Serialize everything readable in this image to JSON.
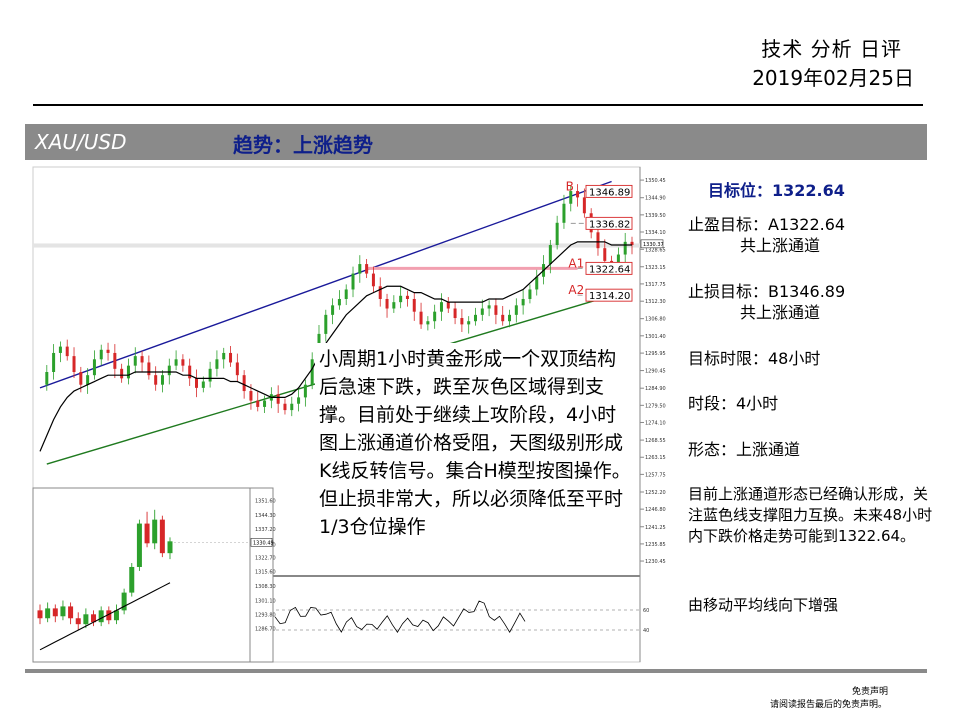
{
  "header": {
    "title": "技术 分析 日评",
    "date": "2019年02月25日"
  },
  "band": {
    "symbol": "XAU/USD",
    "trend": "趋势：上涨趋势"
  },
  "side": {
    "target_label": "目标位：1322.64",
    "tp_line1": "止盈目标：A1322.64",
    "tp_line2": "共上涨通道",
    "sl_line1": "止损目标：B1346.89",
    "sl_line2": "共上涨通道",
    "time_limit": "目标时限：48小时",
    "period": "时段：4小时",
    "pattern": "形态：上涨通道",
    "description": "目前上涨通道形态已经确认形成，关注蓝色线支撑阻力互换。未来48小时内下跌价格走势可能到1322.64。",
    "ma_note": "由移动平均线向下增强"
  },
  "chart_text": "小周期1小时黄金形成一个双顶结构后急速下跌，跌至灰色区域得到支撑。目前处于继续上攻阶段，4小时图上涨通道价格受阻，天图级别形成K线反转信号。集合H模型按图操作。但止损非常大，所以必须降低至平时1/3仓位操作",
  "disclaimer": {
    "line1": "免责声明",
    "line2": "请阅读报告最后的免责声明。"
  },
  "colors": {
    "up": "#2ca02c",
    "down": "#d62728",
    "channel_top": "#1a1a9a",
    "channel_bottom": "#1f7a1f",
    "level": "#d62728",
    "band": "#8a8a8a"
  },
  "chart_data": [
    {
      "type": "candlestick",
      "timeframe": "4小时",
      "y_ticks": [
        "1350.45",
        "1344.90",
        "1339.50",
        "1334.10",
        "1328.65",
        "1323.15",
        "1317.75",
        "1312.30",
        "1306.80",
        "1301.40",
        "1295.95",
        "1290.45",
        "1284.90",
        "1279.50",
        "1274.10",
        "1268.55",
        "1263.15",
        "1257.75",
        "1252.20",
        "1246.80",
        "1241.25",
        "1235.85",
        "1230.45"
      ],
      "y_range": [
        1227,
        1353
      ],
      "current_price": "1330.37",
      "price_path": [
        1286,
        1290,
        1296,
        1298,
        1295,
        1290,
        1286,
        1289,
        1294,
        1297,
        1296,
        1291,
        1288,
        1292,
        1295,
        1293,
        1289,
        1286,
        1289,
        1292,
        1294,
        1292,
        1288,
        1285,
        1287,
        1291,
        1294,
        1296,
        1293,
        1289,
        1284,
        1281,
        1279,
        1281,
        1283,
        1280,
        1278,
        1280,
        1282,
        1286,
        1294,
        1302,
        1308,
        1311,
        1313,
        1316,
        1321,
        1324,
        1321,
        1317,
        1313,
        1310,
        1312,
        1314,
        1313,
        1309,
        1305,
        1306,
        1309,
        1312,
        1310,
        1307,
        1305,
        1306,
        1308,
        1310,
        1311,
        1308,
        1306,
        1308,
        1311,
        1313,
        1316,
        1320,
        1324,
        1330,
        1337,
        1343,
        1347,
        1345,
        1340,
        1334,
        1329,
        1325,
        1323,
        1327,
        1331,
        1330
      ],
      "ma_path": [
        1265,
        1270,
        1275,
        1279,
        1282,
        1284,
        1285,
        1286,
        1287,
        1288,
        1289,
        1289,
        1289,
        1289,
        1290,
        1290,
        1290,
        1290,
        1290,
        1290,
        1290,
        1289,
        1289,
        1288,
        1288,
        1288,
        1288,
        1288,
        1287,
        1287,
        1286,
        1285,
        1284,
        1283,
        1282,
        1282,
        1282,
        1283,
        1285,
        1288,
        1291,
        1295,
        1299,
        1302,
        1305,
        1308,
        1310,
        1312,
        1314,
        1315,
        1316,
        1317,
        1317,
        1317,
        1316,
        1315,
        1315,
        1314,
        1313,
        1313,
        1312,
        1312,
        1312,
        1312,
        1312,
        1312,
        1313,
        1313,
        1313,
        1314,
        1315,
        1316,
        1318,
        1320,
        1322,
        1324,
        1326,
        1328,
        1330,
        1331,
        1331,
        1331,
        1331,
        1331,
        1330,
        1330,
        1330,
        1330
      ],
      "levels": [
        {
          "label": "B",
          "value": "1346.89"
        },
        {
          "label": "",
          "value": "1336.82"
        },
        {
          "label": "A1",
          "value": "1322.64"
        },
        {
          "label": "A2",
          "value": "1314.20"
        }
      ],
      "channel": {
        "upper": "blue",
        "lower": "green"
      },
      "oscillator": {
        "levels": [
          "60",
          "40"
        ]
      }
    },
    {
      "type": "candlestick",
      "timeframe": "daily",
      "y_ticks": [
        "1351.60",
        "1344.30",
        "1337.20",
        "1329.40",
        "1322.70",
        "1315.60",
        "1308.30",
        "1301.10",
        "1293.80",
        "1286.70"
      ],
      "y_range": [
        1283,
        1355
      ],
      "current_price": "1330.49",
      "candles": [
        {
          "o": 1296,
          "c": 1292,
          "h": 1299,
          "l": 1289
        },
        {
          "o": 1292,
          "c": 1297,
          "h": 1300,
          "l": 1290
        },
        {
          "o": 1297,
          "c": 1293,
          "h": 1299,
          "l": 1290
        },
        {
          "o": 1293,
          "c": 1298,
          "h": 1301,
          "l": 1291
        },
        {
          "o": 1298,
          "c": 1292,
          "h": 1300,
          "l": 1289
        },
        {
          "o": 1292,
          "c": 1289,
          "h": 1295,
          "l": 1286
        },
        {
          "o": 1289,
          "c": 1294,
          "h": 1297,
          "l": 1287
        },
        {
          "o": 1294,
          "c": 1290,
          "h": 1296,
          "l": 1288
        },
        {
          "o": 1290,
          "c": 1296,
          "h": 1298,
          "l": 1288
        },
        {
          "o": 1296,
          "c": 1291,
          "h": 1298,
          "l": 1289
        },
        {
          "o": 1291,
          "c": 1296,
          "h": 1299,
          "l": 1289
        },
        {
          "o": 1296,
          "c": 1305,
          "h": 1307,
          "l": 1294
        },
        {
          "o": 1305,
          "c": 1318,
          "h": 1320,
          "l": 1303
        },
        {
          "o": 1318,
          "c": 1340,
          "h": 1342,
          "l": 1316
        },
        {
          "o": 1340,
          "c": 1330,
          "h": 1346,
          "l": 1328
        },
        {
          "o": 1330,
          "c": 1342,
          "h": 1347,
          "l": 1327
        },
        {
          "o": 1342,
          "c": 1325,
          "h": 1344,
          "l": 1323
        },
        {
          "o": 1325,
          "c": 1331,
          "h": 1333,
          "l": 1322
        }
      ],
      "ma_path": [
        1276,
        1278,
        1280,
        1282,
        1284,
        1286,
        1288,
        1290,
        1292,
        1294,
        1296,
        1298,
        1300,
        1302,
        1304,
        1306,
        1308,
        1310
      ]
    }
  ]
}
